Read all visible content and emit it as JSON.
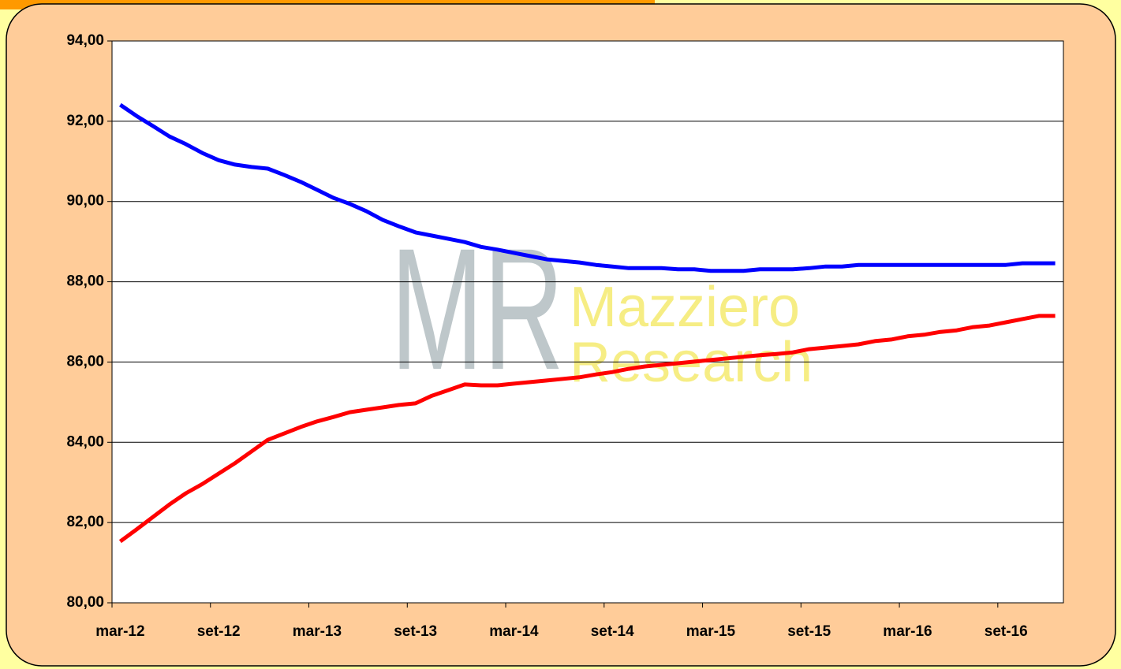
{
  "chart_data": {
    "type": "line",
    "watermark": {
      "logo": "MR",
      "lines": [
        "Mazziero",
        "Research"
      ]
    },
    "categories": [
      "mar-12",
      null,
      null,
      null,
      null,
      null,
      "set-12",
      null,
      null,
      null,
      null,
      null,
      "mar-13",
      null,
      null,
      null,
      null,
      null,
      "set-13",
      null,
      null,
      null,
      null,
      null,
      "mar-14",
      null,
      null,
      null,
      null,
      null,
      "set-14",
      null,
      null,
      null,
      null,
      null,
      "mar-15",
      null,
      null,
      null,
      null,
      null,
      "set-15",
      null,
      null,
      null,
      null,
      null,
      "mar-16",
      null,
      null,
      null,
      null,
      null,
      "set-16",
      null,
      null,
      null
    ],
    "series": [
      {
        "color": "#0000ff",
        "values": [
          92.41,
          92.13,
          91.88,
          91.62,
          91.43,
          91.21,
          91.03,
          90.92,
          90.86,
          90.82,
          90.66,
          90.49,
          90.29,
          90.09,
          89.94,
          89.76,
          89.54,
          89.38,
          89.23,
          89.15,
          89.07,
          88.99,
          88.87,
          88.8,
          88.72,
          88.64,
          88.56,
          88.52,
          88.48,
          88.42,
          88.38,
          88.34,
          88.34,
          88.34,
          88.31,
          88.31,
          88.27,
          88.27,
          88.27,
          88.31,
          88.31,
          88.31,
          88.34,
          88.38,
          88.38,
          88.42,
          88.42,
          88.42,
          88.42,
          88.42,
          88.42,
          88.42,
          88.42,
          88.42,
          88.42,
          88.46,
          88.46,
          88.46
        ]
      },
      {
        "color": "#ff0000",
        "values": [
          81.53,
          81.83,
          82.14,
          82.45,
          82.73,
          82.96,
          83.22,
          83.48,
          83.77,
          84.06,
          84.22,
          84.38,
          84.52,
          84.63,
          84.75,
          84.81,
          84.87,
          84.93,
          84.97,
          85.16,
          85.3,
          85.44,
          85.42,
          85.42,
          85.46,
          85.5,
          85.54,
          85.58,
          85.62,
          85.69,
          85.75,
          85.83,
          85.89,
          85.93,
          85.97,
          86.01,
          86.05,
          86.09,
          86.13,
          86.17,
          86.2,
          86.24,
          86.32,
          86.36,
          86.4,
          86.44,
          86.52,
          86.56,
          86.64,
          86.68,
          86.75,
          86.79,
          86.87,
          86.91,
          86.99,
          87.07,
          87.15,
          87.15
        ]
      }
    ],
    "ylim": [
      80,
      94
    ],
    "yticks": [
      {
        "value": 80,
        "label": "80,00"
      },
      {
        "value": 82,
        "label": "82,00"
      },
      {
        "value": 84,
        "label": "84,00"
      },
      {
        "value": 86,
        "label": "86,00"
      },
      {
        "value": 88,
        "label": "88,00"
      },
      {
        "value": 90,
        "label": "90,00"
      },
      {
        "value": 92,
        "label": "92,00"
      },
      {
        "value": 94,
        "label": "94,00"
      }
    ],
    "grid": true
  }
}
